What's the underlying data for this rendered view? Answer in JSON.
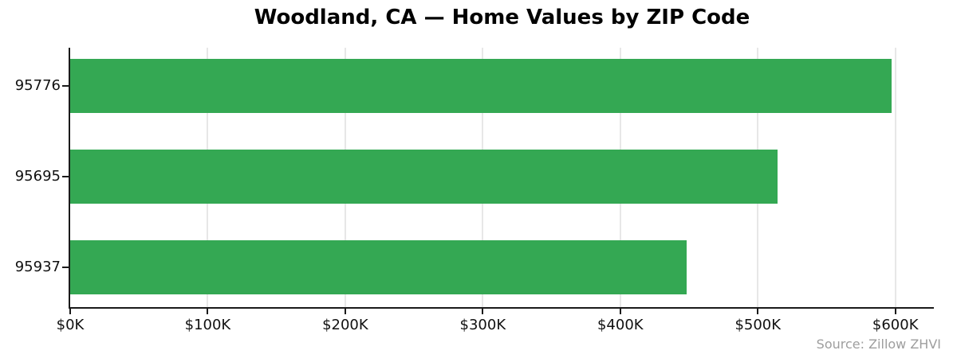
{
  "chart_data": {
    "type": "bar",
    "orientation": "horizontal",
    "title": "Woodland, CA — Home Values by ZIP Code",
    "categories": [
      "95776",
      "95695",
      "95937"
    ],
    "values": [
      597000,
      514500,
      448400
    ],
    "xlabel": "",
    "ylabel": "",
    "xlim": [
      0,
      628000
    ],
    "x_ticks": [
      0,
      100000,
      200000,
      300000,
      400000,
      500000,
      600000
    ],
    "x_tick_labels": [
      "$0K",
      "$100K",
      "$200K",
      "$300K",
      "$400K",
      "$500K",
      "$600K"
    ],
    "grid": "vertical-light-gray-behind-bars",
    "legend": "none",
    "source": "Source: Zillow ZHVI"
  },
  "colors": {
    "bar": "#34a853",
    "gridline": "#e7e7e7",
    "axis": "#1a1a1a",
    "tick_label": "#111111",
    "source_text": "#9e9e9e",
    "background": "#ffffff"
  }
}
